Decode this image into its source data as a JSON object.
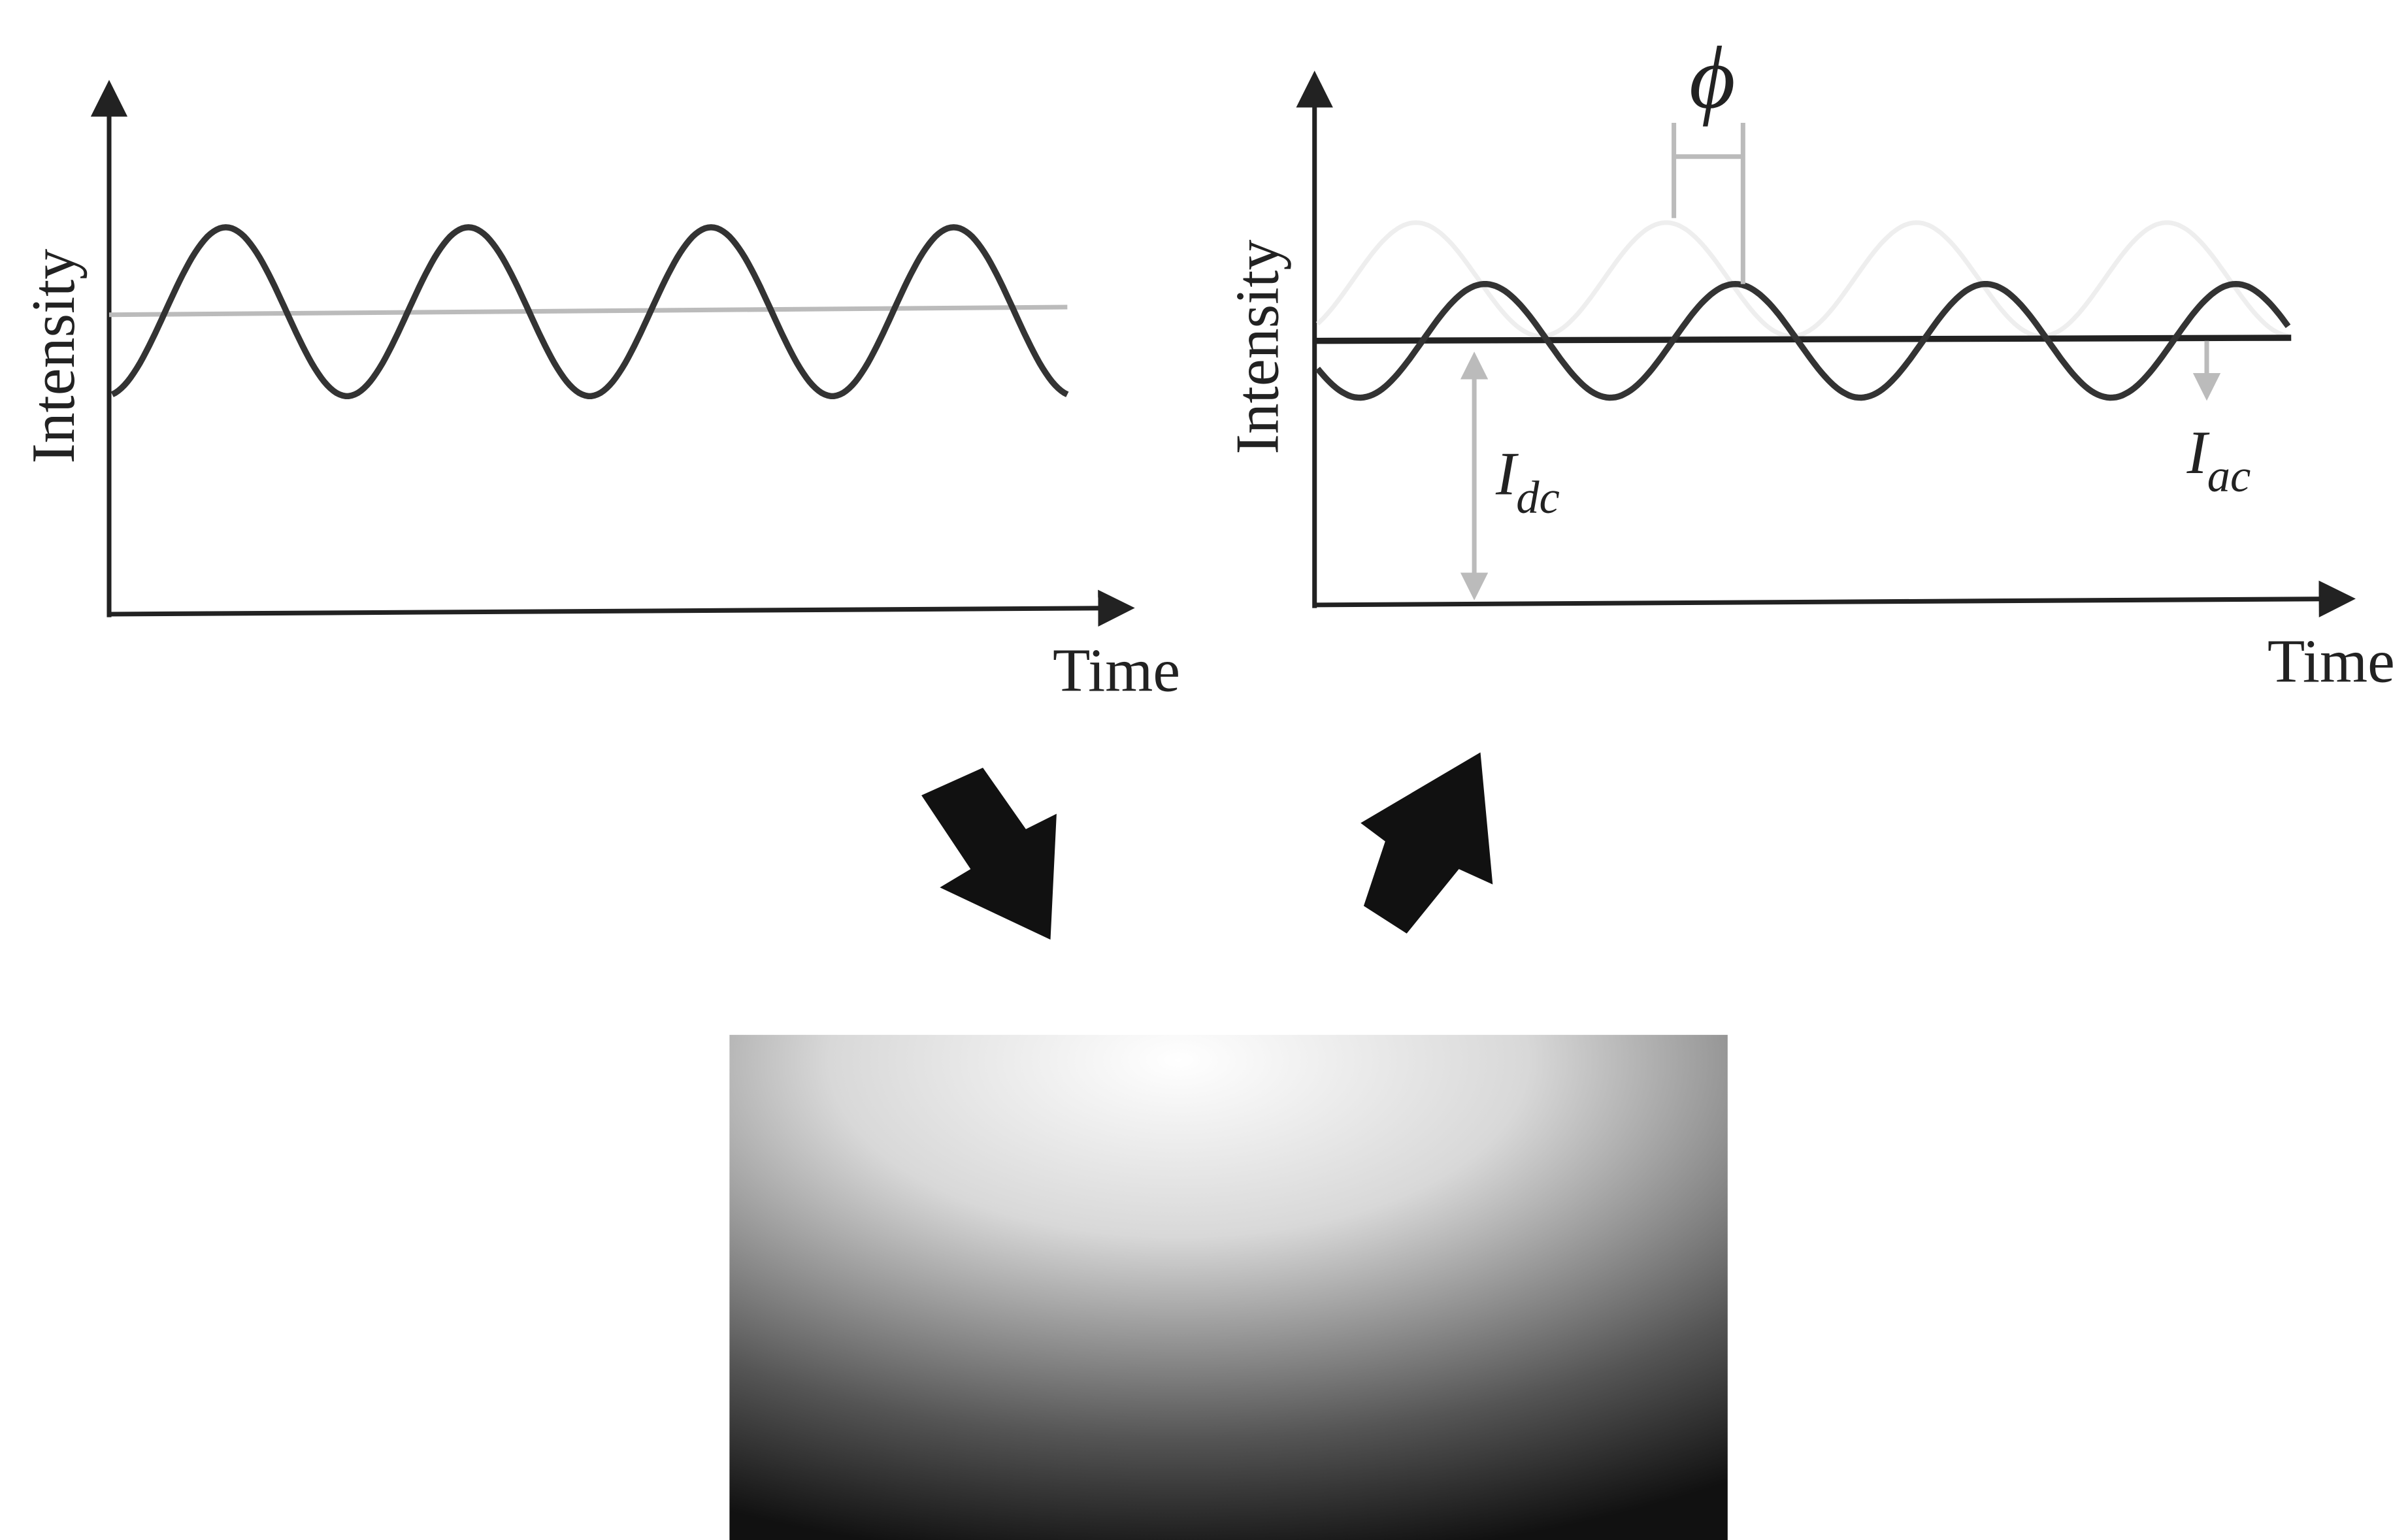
{
  "left_plot": {
    "y_label": "Intensity",
    "x_label": "Time"
  },
  "right_plot": {
    "y_label": "Intensity",
    "x_label": "Time",
    "phase_label": "ϕ",
    "dc_label": {
      "symbol": "I",
      "subscript": "dc"
    },
    "ac_label": {
      "symbol": "I",
      "subscript": "ac"
    }
  }
}
